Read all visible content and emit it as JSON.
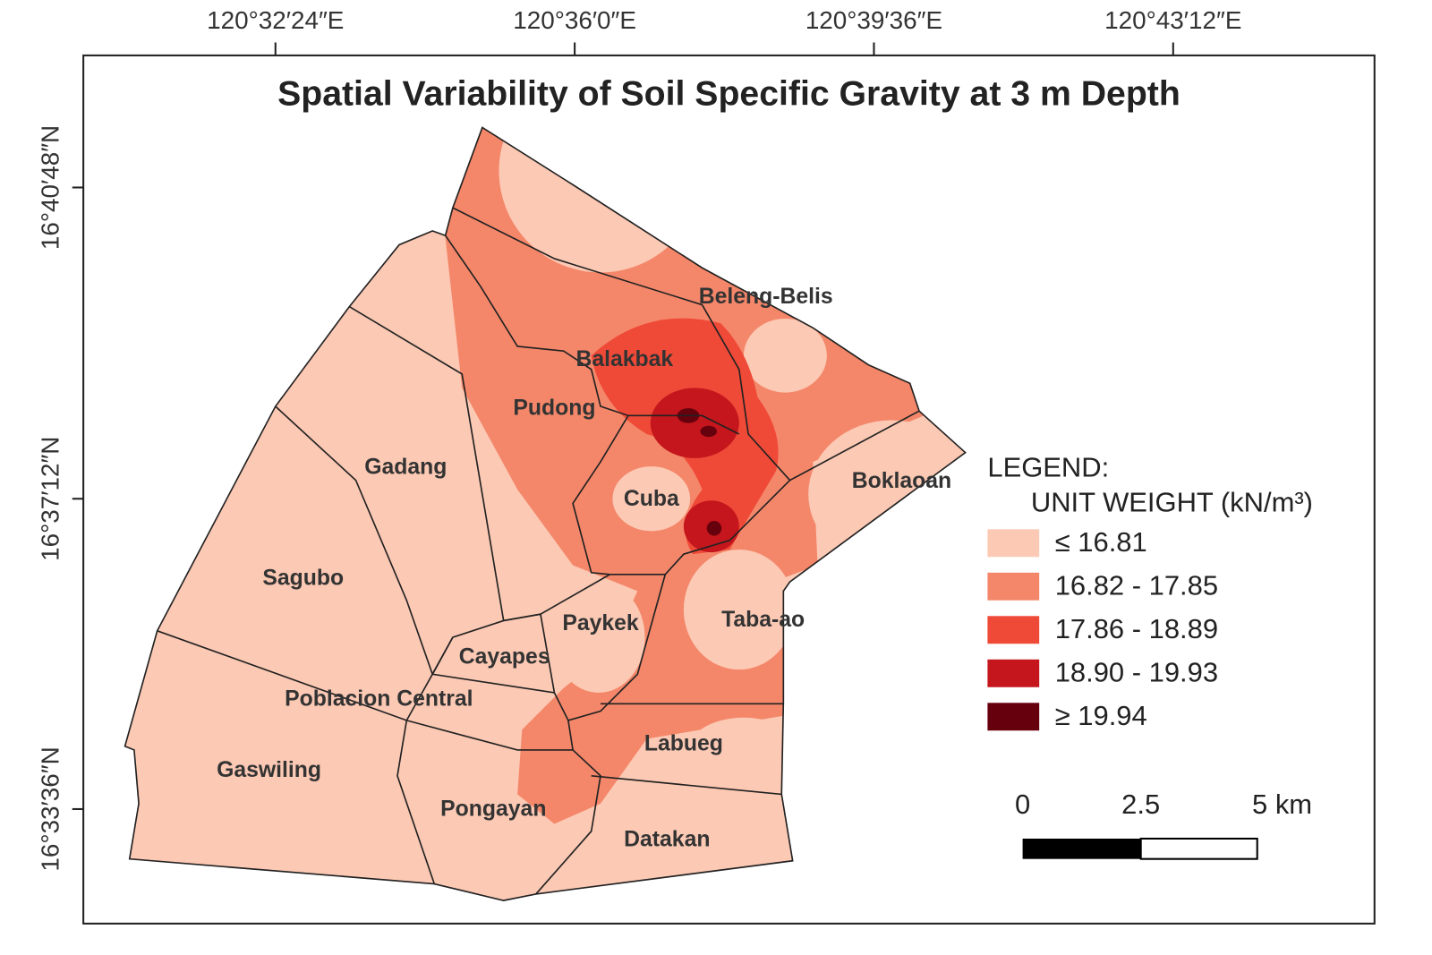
{
  "title": "Spatial Variability of Soil Specific Gravity at 3 m Depth",
  "axes": {
    "longitude_labels": [
      "120°32′24″E",
      "120°36′0″E",
      "120°39′36″E",
      "120°43′12″E"
    ],
    "latitude_labels": [
      "16°40′48″N",
      "16°37′12″N",
      "16°33′36″N"
    ]
  },
  "places": [
    {
      "label": "Beleng-Belis"
    },
    {
      "label": "Balakbak"
    },
    {
      "label": "Pudong"
    },
    {
      "label": "Gadang"
    },
    {
      "label": "Cuba"
    },
    {
      "label": "Boklaoan"
    },
    {
      "label": "Sagubo"
    },
    {
      "label": "Paykek"
    },
    {
      "label": "Taba-ao"
    },
    {
      "label": "Cayapes"
    },
    {
      "label": "Poblacion Central"
    },
    {
      "label": "Labueg"
    },
    {
      "label": "Gaswiling"
    },
    {
      "label": "Pongayan"
    },
    {
      "label": "Datakan"
    }
  ],
  "legend": {
    "heading": "LEGEND:",
    "subheading": "UNIT WEIGHT (kN/m³)",
    "classes": [
      {
        "label": "≤ 16.81",
        "color": "#fcc9b4"
      },
      {
        "label": "16.82 - 17.85",
        "color": "#f4876a"
      },
      {
        "label": "17.86 - 18.89",
        "color": "#ef4a38"
      },
      {
        "label": "18.90 - 19.93",
        "color": "#c4161c"
      },
      {
        "label": "≥ 19.94",
        "color": "#67000d"
      }
    ]
  },
  "scale_bar": {
    "labels": [
      "0",
      "2.5",
      "5 km"
    ]
  }
}
